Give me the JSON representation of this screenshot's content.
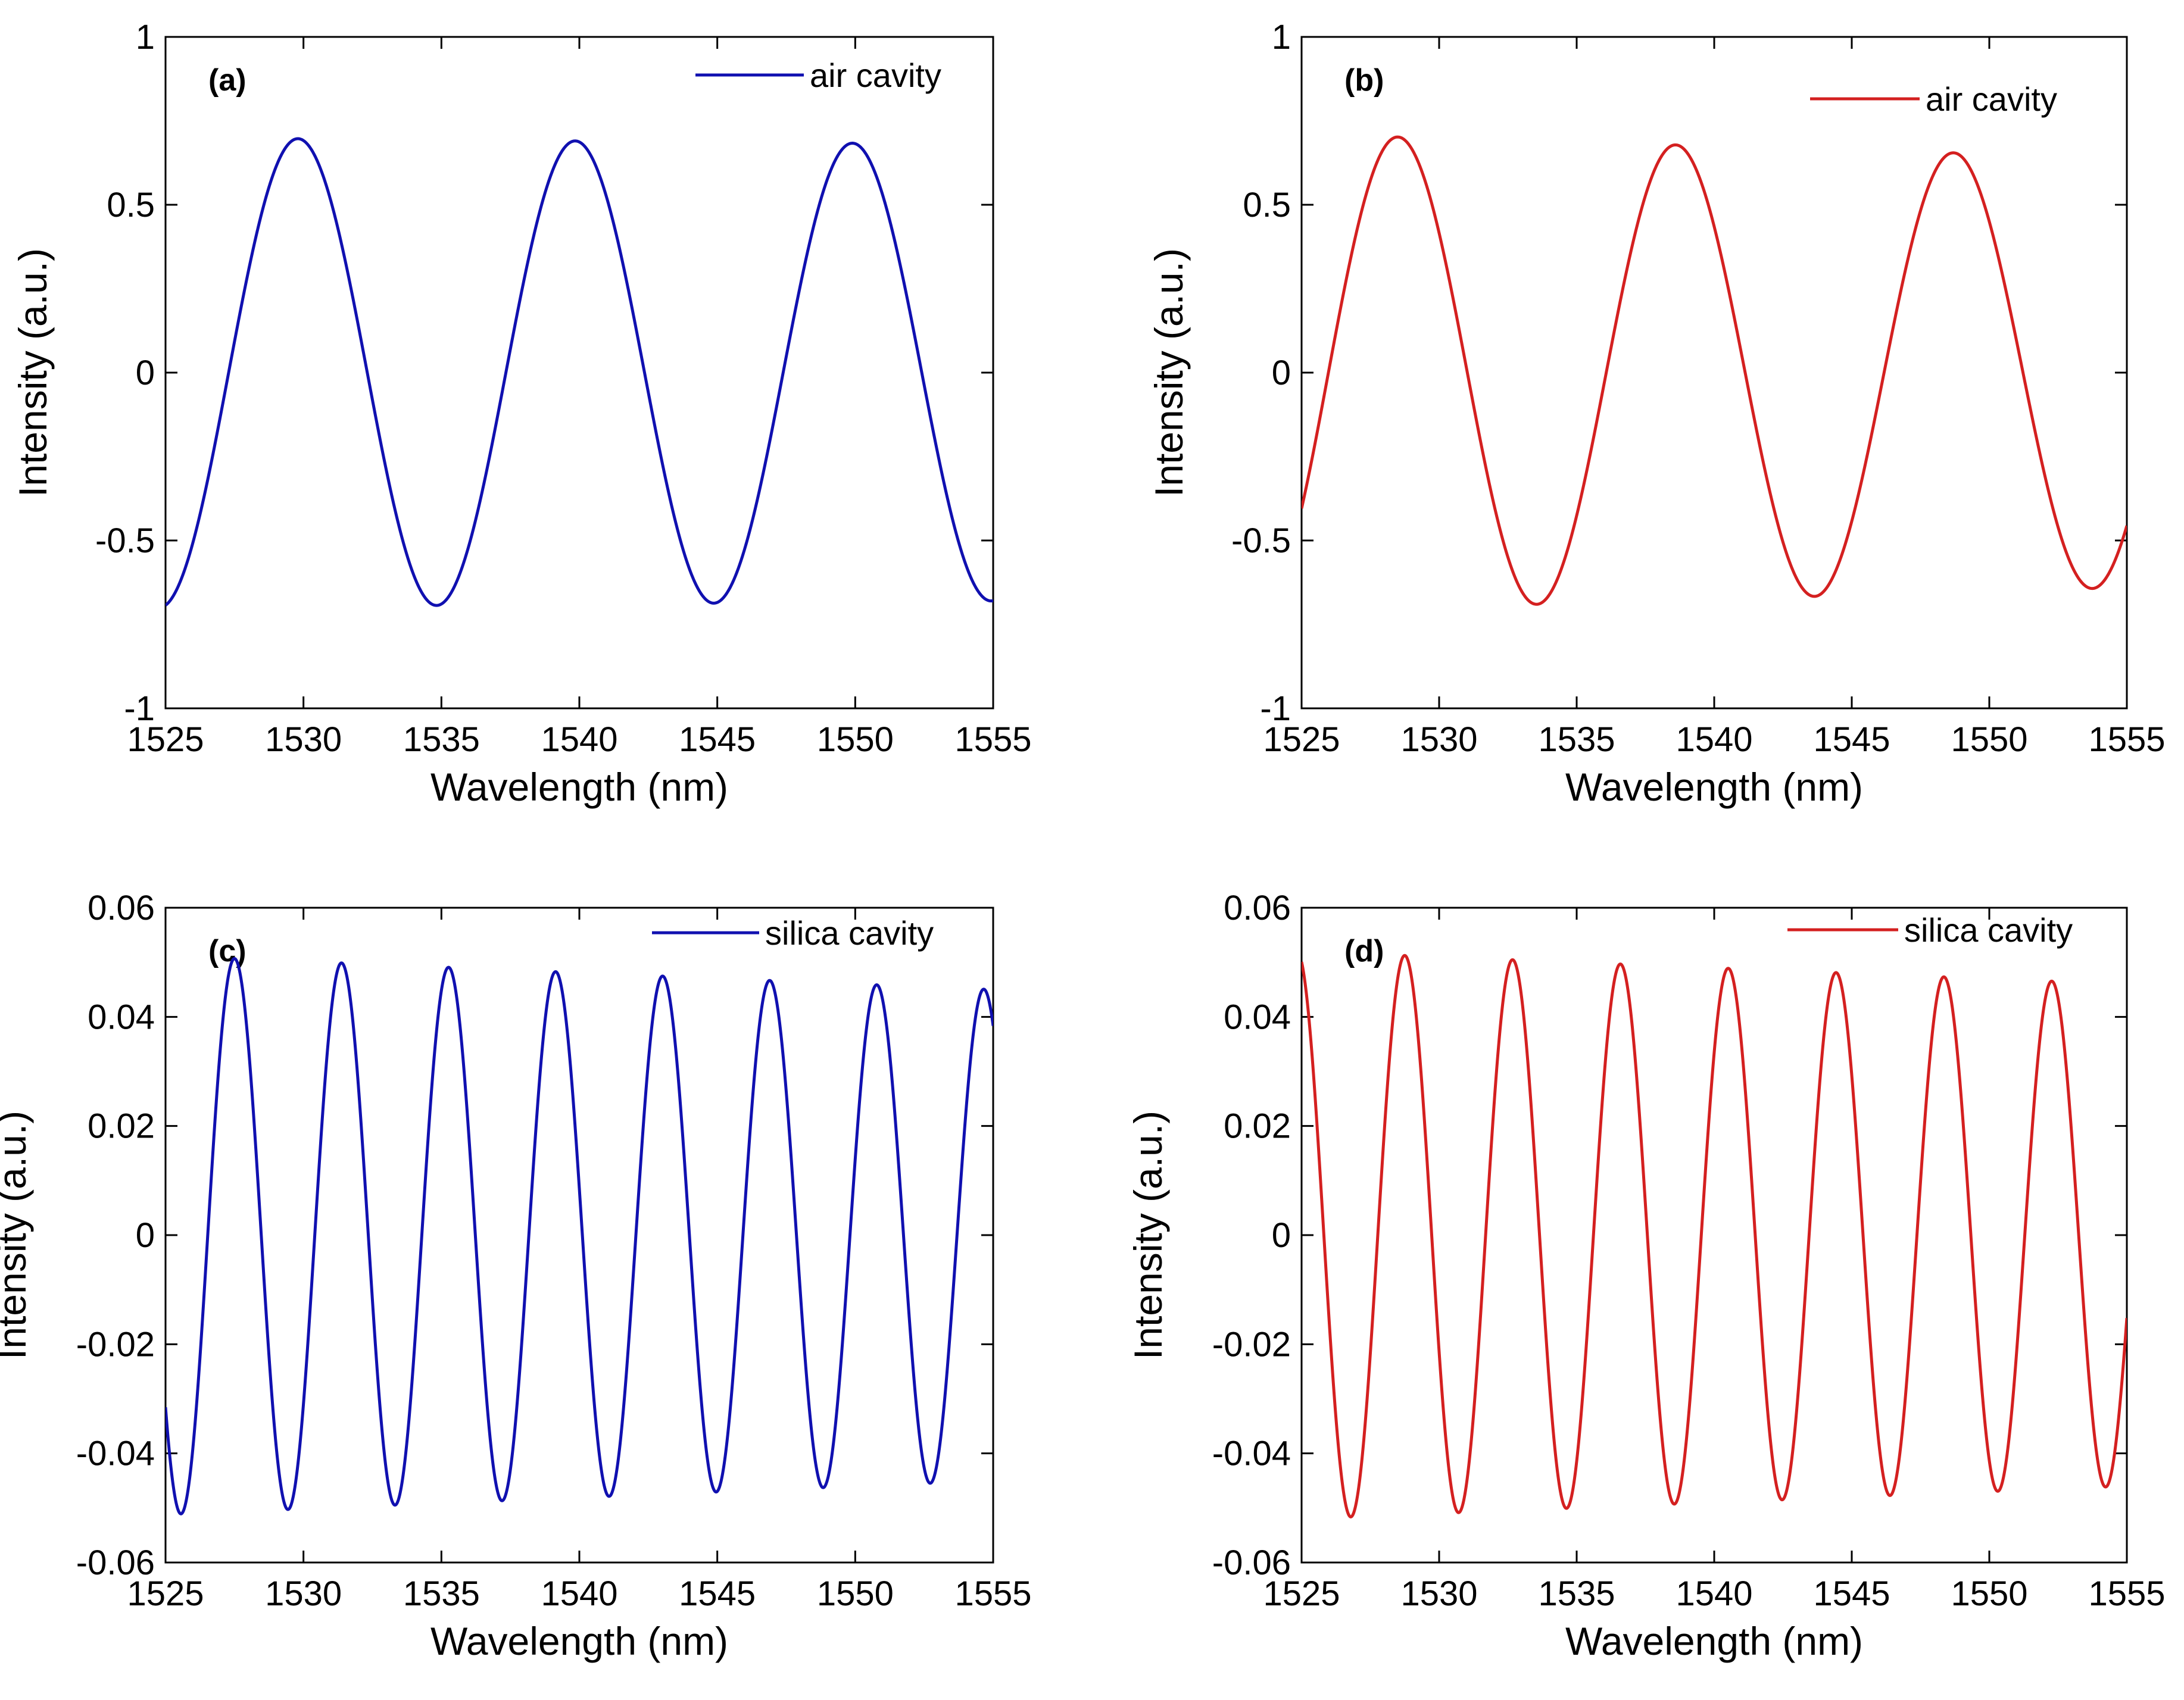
{
  "colors": {
    "blue": "#1010b0",
    "red": "#d42020",
    "axis": "#000000"
  },
  "chart_data": [
    {
      "panel": "(a)",
      "type": "line",
      "xlabel": "Wavelength (nm)",
      "ylabel": "Intensity (a.u.)",
      "xlim": [
        1525,
        1555
      ],
      "ylim": [
        -1,
        1
      ],
      "xticks": [
        1525,
        1530,
        1535,
        1540,
        1545,
        1550,
        1555
      ],
      "yticks": [
        -1,
        -0.5,
        0,
        0.5,
        1
      ],
      "ytick_labels": [
        "-1",
        "-0.5",
        "0",
        "0.5",
        "1"
      ],
      "legend": {
        "label": "air cavity",
        "color": "blue",
        "position": "top-right"
      },
      "series": [
        {
          "name": "air cavity",
          "color": "blue",
          "amplitude": 0.7,
          "amplitude_end": 0.68,
          "period_nm": 10.05,
          "peak_at_nm": 1529.8
        }
      ]
    },
    {
      "panel": "(b)",
      "type": "line",
      "xlabel": "Wavelength (nm)",
      "ylabel": "Intensity (a.u.)",
      "xlim": [
        1525,
        1555
      ],
      "ylim": [
        -1,
        1
      ],
      "xticks": [
        1525,
        1530,
        1535,
        1540,
        1545,
        1550,
        1555
      ],
      "yticks": [
        -1,
        -0.5,
        0,
        0.5,
        1
      ],
      "ytick_labels": [
        "-1",
        "-0.5",
        "0",
        "0.5",
        "1"
      ],
      "legend": {
        "label": "air cavity",
        "color": "red",
        "position": "top-right"
      },
      "series": [
        {
          "name": "air cavity",
          "color": "red",
          "amplitude": 0.71,
          "amplitude_end": 0.64,
          "period_nm": 10.1,
          "peak_at_nm": 1528.5
        }
      ]
    },
    {
      "panel": "(c)",
      "type": "line",
      "xlabel": "Wavelength (nm)",
      "ylabel": "Intensity (a.u.)",
      "xlim": [
        1525,
        1555
      ],
      "ylim": [
        -0.06,
        0.06
      ],
      "xticks": [
        1525,
        1530,
        1535,
        1540,
        1545,
        1550,
        1555
      ],
      "yticks": [
        -0.06,
        -0.04,
        -0.02,
        0,
        0.02,
        0.04,
        0.06
      ],
      "ytick_labels": [
        "-0.06",
        "-0.04",
        "-0.02",
        "0",
        "0.02",
        "0.04",
        "0.06"
      ],
      "legend": {
        "label": "silica cavity",
        "color": "blue",
        "position": "top-right"
      },
      "series": [
        {
          "name": "silica cavity",
          "color": "blue",
          "amplitude": 0.0512,
          "amplitude_end": 0.045,
          "period_nm": 3.88,
          "peak_at_nm": 1527.5
        }
      ]
    },
    {
      "panel": "(d)",
      "type": "line",
      "xlabel": "Wavelength (nm)",
      "ylabel": "Intensity (a.u.)",
      "xlim": [
        1525,
        1555
      ],
      "ylim": [
        -0.06,
        0.06
      ],
      "xticks": [
        1525,
        1530,
        1535,
        1540,
        1545,
        1550,
        1555
      ],
      "yticks": [
        -0.06,
        -0.04,
        -0.02,
        0,
        0.02,
        0.04,
        0.06
      ],
      "ytick_labels": [
        "-0.06",
        "-0.04",
        "-0.02",
        "0",
        "0.02",
        "0.04",
        "0.06"
      ],
      "legend": {
        "label": "silica cavity",
        "color": "red",
        "position": "top-right"
      },
      "series": [
        {
          "name": "silica cavity",
          "color": "red",
          "amplitude": 0.052,
          "amplitude_end": 0.046,
          "period_nm": 3.92,
          "peak_at_nm": 1528.75
        }
      ]
    }
  ]
}
